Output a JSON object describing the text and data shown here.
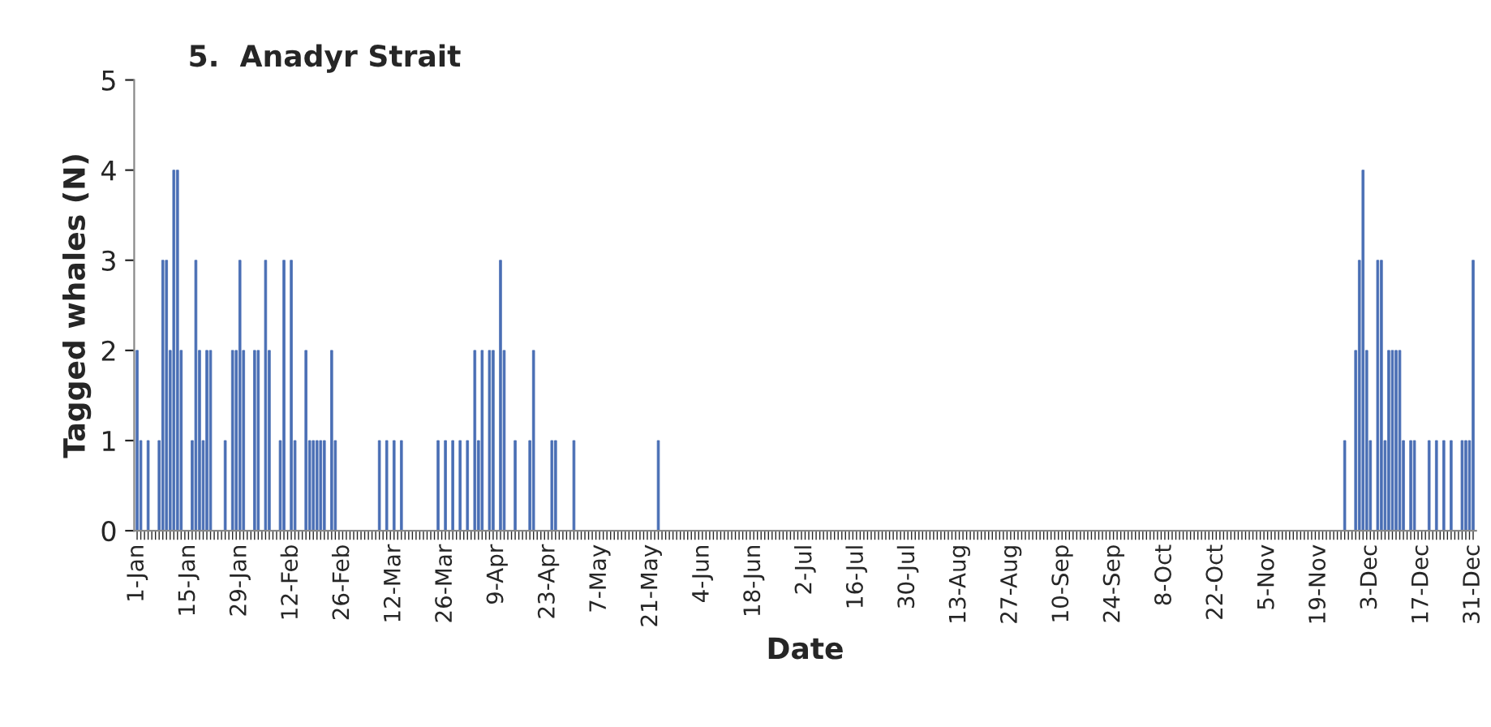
{
  "chart_data": {
    "type": "bar",
    "title": "5.  Anadyr Strait",
    "xlabel": "Date",
    "ylabel": "Tagged whales (N)",
    "categories": [
      "1-Jan",
      null,
      null,
      null,
      null,
      null,
      null,
      null,
      null,
      null,
      null,
      null,
      null,
      null,
      "15-Jan",
      null,
      null,
      null,
      null,
      null,
      null,
      null,
      null,
      null,
      null,
      null,
      null,
      null,
      "29-Jan",
      null,
      null,
      null,
      null,
      null,
      null,
      null,
      null,
      null,
      null,
      null,
      null,
      null,
      "12-Feb",
      null,
      null,
      null,
      null,
      null,
      null,
      null,
      null,
      null,
      null,
      null,
      null,
      null,
      "26-Feb",
      null,
      null,
      null,
      null,
      null,
      null,
      null,
      null,
      null,
      null,
      null,
      null,
      null,
      "12-Mar",
      null,
      null,
      null,
      null,
      null,
      null,
      null,
      null,
      null,
      null,
      null,
      null,
      null,
      "26-Mar",
      null,
      null,
      null,
      null,
      null,
      null,
      null,
      null,
      null,
      null,
      null,
      null,
      null,
      "9-Apr",
      null,
      null,
      null,
      null,
      null,
      null,
      null,
      null,
      null,
      null,
      null,
      null,
      null,
      "23-Apr",
      null,
      null,
      null,
      null,
      null,
      null,
      null,
      null,
      null,
      null,
      null,
      null,
      null,
      "7-May",
      null,
      null,
      null,
      null,
      null,
      null,
      null,
      null,
      null,
      null,
      null,
      null,
      null,
      "21-May",
      null,
      null,
      null,
      null,
      null,
      null,
      null,
      null,
      null,
      null,
      null,
      null,
      null,
      "4-Jun",
      null,
      null,
      null,
      null,
      null,
      null,
      null,
      null,
      null,
      null,
      null,
      null,
      null,
      "18-Jun",
      null,
      null,
      null,
      null,
      null,
      null,
      null,
      null,
      null,
      null,
      null,
      null,
      null,
      "2-Jul",
      null,
      null,
      null,
      null,
      null,
      null,
      null,
      null,
      null,
      null,
      null,
      null,
      null,
      "16-Jul",
      null,
      null,
      null,
      null,
      null,
      null,
      null,
      null,
      null,
      null,
      null,
      null,
      null,
      "30-Jul",
      null,
      null,
      null,
      null,
      null,
      null,
      null,
      null,
      null,
      null,
      null,
      null,
      null,
      "13-Aug",
      null,
      null,
      null,
      null,
      null,
      null,
      null,
      null,
      null,
      null,
      null,
      null,
      null,
      "27-Aug",
      null,
      null,
      null,
      null,
      null,
      null,
      null,
      null,
      null,
      null,
      null,
      null,
      null,
      "10-Sep",
      null,
      null,
      null,
      null,
      null,
      null,
      null,
      null,
      null,
      null,
      null,
      null,
      null,
      "24-Sep",
      null,
      null,
      null,
      null,
      null,
      null,
      null,
      null,
      null,
      null,
      null,
      null,
      null,
      "8-Oct",
      null,
      null,
      null,
      null,
      null,
      null,
      null,
      null,
      null,
      null,
      null,
      null,
      null,
      "22-Oct",
      null,
      null,
      null,
      null,
      null,
      null,
      null,
      null,
      null,
      null,
      null,
      null,
      null,
      "5-Nov",
      null,
      null,
      null,
      null,
      null,
      null,
      null,
      null,
      null,
      null,
      null,
      null,
      null,
      "19-Nov",
      null,
      null,
      null,
      null,
      null,
      null,
      null,
      null,
      null,
      null,
      null,
      null,
      null,
      "3-Dec",
      null,
      null,
      null,
      null,
      null,
      null,
      null,
      null,
      null,
      null,
      null,
      null,
      null,
      "17-Dec",
      null,
      null,
      null,
      null,
      null,
      null,
      null,
      null,
      null,
      null,
      null,
      null,
      null,
      "31-Dec"
    ],
    "values": [
      2,
      1,
      0,
      1,
      0,
      0,
      1,
      3,
      3,
      2,
      4,
      4,
      2,
      0,
      0,
      1,
      3,
      2,
      1,
      2,
      2,
      0,
      0,
      0,
      1,
      0,
      2,
      2,
      3,
      2,
      0,
      0,
      2,
      2,
      0,
      3,
      2,
      0,
      0,
      1,
      3,
      0,
      3,
      1,
      0,
      0,
      2,
      1,
      1,
      1,
      1,
      1,
      0,
      2,
      1,
      0,
      0,
      0,
      0,
      0,
      0,
      0,
      0,
      0,
      0,
      0,
      1,
      0,
      1,
      0,
      1,
      0,
      1,
      0,
      0,
      0,
      0,
      0,
      0,
      0,
      0,
      0,
      1,
      0,
      1,
      0,
      1,
      0,
      1,
      0,
      1,
      0,
      2,
      1,
      2,
      0,
      2,
      2,
      0,
      3,
      2,
      0,
      0,
      1,
      0,
      0,
      0,
      1,
      2,
      0,
      0,
      0,
      0,
      1,
      1,
      0,
      0,
      0,
      0,
      1,
      0,
      0,
      0,
      0,
      0,
      0,
      0,
      0,
      0,
      0,
      0,
      0,
      0,
      0,
      0,
      0,
      0,
      0,
      0,
      0,
      0,
      0,
      1,
      0,
      0,
      0,
      0,
      0,
      0,
      0,
      0,
      0,
      0,
      0,
      0,
      0,
      0,
      0,
      0,
      0,
      0,
      0,
      0,
      0,
      0,
      0,
      0,
      0,
      0,
      0,
      0,
      0,
      0,
      0,
      0,
      0,
      0,
      0,
      0,
      0,
      0,
      0,
      0,
      0,
      0,
      0,
      0,
      0,
      0,
      0,
      0,
      0,
      0,
      0,
      0,
      0,
      0,
      0,
      0,
      0,
      0,
      0,
      0,
      0,
      0,
      0,
      0,
      0,
      0,
      0,
      0,
      0,
      0,
      0,
      0,
      0,
      0,
      0,
      0,
      0,
      0,
      0,
      0,
      0,
      0,
      0,
      0,
      0,
      0,
      0,
      0,
      0,
      0,
      0,
      0,
      0,
      0,
      0,
      0,
      0,
      0,
      0,
      0,
      0,
      0,
      0,
      0,
      0,
      0,
      0,
      0,
      0,
      0,
      0,
      0,
      0,
      0,
      0,
      0,
      0,
      0,
      0,
      0,
      0,
      0,
      0,
      0,
      0,
      0,
      0,
      0,
      0,
      0,
      0,
      0,
      0,
      0,
      0,
      0,
      0,
      0,
      0,
      0,
      0,
      0,
      0,
      0,
      0,
      0,
      0,
      0,
      0,
      0,
      0,
      0,
      0,
      0,
      0,
      0,
      0,
      0,
      0,
      0,
      0,
      0,
      0,
      0,
      0,
      0,
      0,
      0,
      0,
      0,
      0,
      0,
      0,
      0,
      0,
      0,
      0,
      0,
      0,
      0,
      0,
      0,
      0,
      0,
      0,
      0,
      1,
      0,
      0,
      2,
      3,
      4,
      2,
      1,
      0,
      3,
      3,
      1,
      2,
      2,
      2,
      2,
      1,
      0,
      1,
      1,
      0,
      0,
      0,
      1,
      0,
      1,
      0,
      1,
      0,
      1,
      0,
      0,
      1,
      1,
      1,
      3
    ],
    "color": "#4a6fb5",
    "ylim": [
      0,
      5
    ],
    "yticks": [
      0,
      1,
      2,
      3,
      4,
      5
    ],
    "grid": false,
    "legend": false
  }
}
